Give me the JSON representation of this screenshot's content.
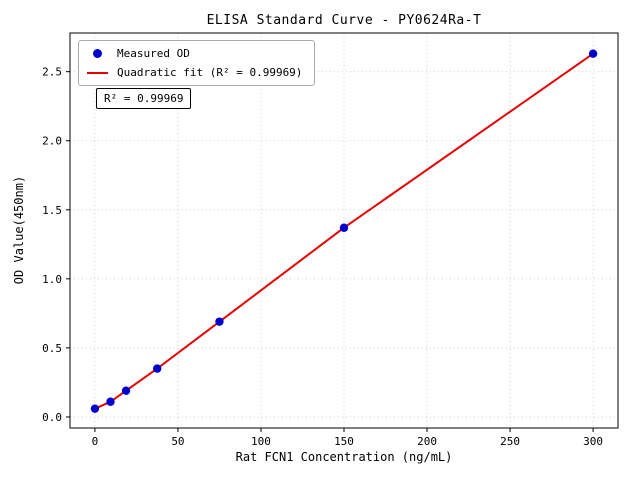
{
  "chart_data": {
    "type": "scatter",
    "title": "ELISA Standard Curve - PY0624Ra-T",
    "xlabel": "Rat FCN1 Concentration (ng/mL)",
    "ylabel": "OD Value(450nm)",
    "annotation": "R² = 0.99969",
    "x": [
      0,
      9.375,
      18.75,
      37.5,
      75,
      150,
      300
    ],
    "measured_od": [
      0.06,
      0.11,
      0.19,
      0.35,
      0.69,
      1.37,
      2.63
    ],
    "fit": {
      "type": "quadratic",
      "r_squared": 0.99969
    },
    "point_color": "#0000cd",
    "line_color": "#e80000",
    "grid": true,
    "xlim": [
      -15,
      315
    ],
    "ylim": [
      -0.08,
      2.78
    ],
    "xticks": [
      0,
      50,
      100,
      150,
      200,
      250,
      300
    ],
    "xtick_labels": [
      "0",
      "50",
      "100",
      "150",
      "200",
      "250",
      "300"
    ],
    "yticks": [
      0,
      0.5,
      1.0,
      1.5,
      2.0,
      2.5
    ],
    "ytick_labels": [
      "0.0",
      "0.5",
      "1.0",
      "1.5",
      "2.0",
      "2.5"
    ],
    "legend": {
      "position": "upper left",
      "items": [
        {
          "label": "Measured OD",
          "marker": "dot"
        },
        {
          "label": "Quadratic fit (R² = 0.99969)",
          "marker": "line"
        }
      ]
    }
  }
}
